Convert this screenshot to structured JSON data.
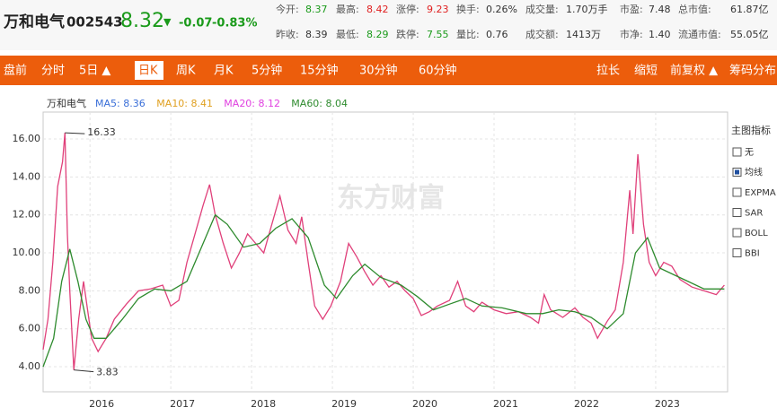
{
  "header": {
    "name": "万和电气",
    "code": "002543",
    "price": "8.32",
    "arrow": "▼",
    "change": "-0.07",
    "change_pct": "-0.83%",
    "down_color": "#1a9a1a",
    "up_color": "#e02020",
    "stats": [
      [
        {
          "label": "今开:",
          "value": "8.37",
          "color": "#1a9a1a"
        },
        {
          "label": "最高:",
          "value": "8.42",
          "color": "#e02020"
        },
        {
          "label": "涨停:",
          "value": "9.23",
          "color": "#e02020"
        },
        {
          "label": "换手:",
          "value": "0.26%",
          "color": "#333333"
        },
        {
          "label": "成交量:",
          "value": "1.70万手",
          "color": "#333333"
        },
        {
          "label": "市盈:",
          "value": "7.48",
          "color": "#333333"
        },
        {
          "label": "总市值:",
          "value": "61.87亿",
          "color": "#333333"
        }
      ],
      [
        {
          "label": "昨收:",
          "value": "8.39",
          "color": "#333333"
        },
        {
          "label": "最低:",
          "value": "8.29",
          "color": "#1a9a1a"
        },
        {
          "label": "跌停:",
          "value": "7.55",
          "color": "#1a9a1a"
        },
        {
          "label": "量比:",
          "value": "0.76",
          "color": "#333333"
        },
        {
          "label": "成交额:",
          "value": "1413万",
          "color": "#333333"
        },
        {
          "label": "市净:",
          "value": "1.40",
          "color": "#333333"
        },
        {
          "label": "流通市值:",
          "value": "55.05亿",
          "color": "#333333"
        }
      ]
    ]
  },
  "tabs": {
    "left": [
      "盘前",
      "分时",
      "5日 ▲",
      "日K",
      "周K",
      "月K",
      "5分钟",
      "15分钟",
      "30分钟",
      "60分钟"
    ],
    "selected": 3,
    "right": [
      "拉长",
      "缩短",
      "前复权 ▲",
      "筹码分布"
    ]
  },
  "panel": {
    "title": "主图指标",
    "options": [
      "无",
      "均线",
      "EXPMA",
      "SAR",
      "BOLL",
      "BBI"
    ],
    "checked": 1
  },
  "watermark": "东方财富",
  "chart_data": {
    "type": "line",
    "indicators": [
      {
        "label": "MA5: 8.36",
        "color": "#3a6fd8"
      },
      {
        "label": "MA10: 8.41",
        "color": "#e0a020"
      },
      {
        "label": "MA20: 8.12",
        "color": "#e040e0"
      }
    ],
    "xlim": [
      2015.42,
      2023.89
    ],
    "ylim": [
      2.68,
      17.42
    ],
    "xticks": [
      {
        "value": 2016,
        "label": "2016"
      },
      {
        "value": 2017,
        "label": "2017"
      },
      {
        "value": 2018,
        "label": "2018"
      },
      {
        "value": 2019,
        "label": "2019"
      },
      {
        "value": 2020,
        "label": "2020"
      },
      {
        "value": 2021,
        "label": "2021"
      },
      {
        "value": 2022,
        "label": "2022"
      },
      {
        "value": 2023,
        "label": "2023"
      }
    ],
    "yticks": [
      {
        "value": 4,
        "label": "4.00"
      },
      {
        "value": 6,
        "label": "6.00"
      },
      {
        "value": 8,
        "label": "8.00"
      },
      {
        "value": 10,
        "label": "10.00"
      },
      {
        "value": 12,
        "label": "12.00"
      },
      {
        "value": 14,
        "label": "14.00"
      },
      {
        "value": 16,
        "label": "16.00"
      }
    ],
    "grid": true,
    "series": [
      {
        "name": "万和电气",
        "color": "#e0407a",
        "x": [
          2015.42,
          2015.48,
          2015.54,
          2015.6,
          2015.66,
          2015.69,
          2015.72,
          2015.75,
          2015.78,
          2015.8,
          2015.86,
          2015.92,
          2015.97,
          2016.02,
          2016.1,
          2016.2,
          2016.3,
          2016.45,
          2016.6,
          2016.75,
          2016.9,
          2017.0,
          2017.1,
          2017.2,
          2017.3,
          2017.4,
          2017.48,
          2017.55,
          2017.65,
          2017.75,
          2017.85,
          2017.95,
          2018.05,
          2018.15,
          2018.25,
          2018.35,
          2018.45,
          2018.55,
          2018.62,
          2018.7,
          2018.78,
          2018.88,
          2018.98,
          2019.1,
          2019.2,
          2019.3,
          2019.4,
          2019.5,
          2019.6,
          2019.7,
          2019.8,
          2019.9,
          2020.0,
          2020.1,
          2020.2,
          2020.3,
          2020.45,
          2020.55,
          2020.65,
          2020.75,
          2020.85,
          2021.0,
          2021.15,
          2021.3,
          2021.45,
          2021.55,
          2021.62,
          2021.7,
          2021.85,
          2022.0,
          2022.1,
          2022.2,
          2022.28,
          2022.4,
          2022.5,
          2022.6,
          2022.68,
          2022.72,
          2022.78,
          2022.85,
          2022.92,
          2023.0,
          2023.1,
          2023.2,
          2023.3,
          2023.45,
          2023.6,
          2023.75,
          2023.85
        ],
        "values": [
          4.9,
          6.5,
          9.5,
          13.5,
          14.8,
          16.33,
          11,
          8,
          5.5,
          3.83,
          6.5,
          8.5,
          7,
          5.5,
          4.8,
          5.5,
          6.5,
          7.3,
          8,
          8.1,
          8.3,
          7.2,
          7.5,
          9.5,
          11,
          12.5,
          13.6,
          12,
          10.5,
          9.2,
          10,
          11,
          10.5,
          10,
          11.5,
          13,
          11.2,
          10.5,
          11.9,
          9.5,
          7.2,
          6.5,
          7.2,
          8.5,
          10.5,
          9.8,
          9,
          8.3,
          8.8,
          8.2,
          8.5,
          8.0,
          7.6,
          6.7,
          6.9,
          7.2,
          7.5,
          8.5,
          7.2,
          6.9,
          7.4,
          7.0,
          6.8,
          6.9,
          6.6,
          6.3,
          7.8,
          7.0,
          6.6,
          7.1,
          6.6,
          6.3,
          5.5,
          6.4,
          7.0,
          9.5,
          13.3,
          11,
          15.2,
          11.5,
          9.5,
          8.8,
          9.5,
          9.3,
          8.6,
          8.2,
          8.0,
          7.8,
          8.3
        ]
      },
      {
        "name": "MA60: 8.04",
        "color": "#2e8b2e",
        "x": [
          2015.42,
          2015.55,
          2015.65,
          2015.75,
          2015.85,
          2015.95,
          2016.05,
          2016.2,
          2016.4,
          2016.6,
          2016.8,
          2017.0,
          2017.2,
          2017.4,
          2017.55,
          2017.7,
          2017.9,
          2018.1,
          2018.3,
          2018.5,
          2018.7,
          2018.9,
          2019.05,
          2019.25,
          2019.4,
          2019.6,
          2019.85,
          2020.05,
          2020.25,
          2020.45,
          2020.65,
          2020.85,
          2021.1,
          2021.4,
          2021.6,
          2021.8,
          2022.0,
          2022.2,
          2022.4,
          2022.6,
          2022.75,
          2022.9,
          2023.05,
          2023.3,
          2023.6,
          2023.85
        ],
        "values": [
          4.0,
          5.5,
          8.5,
          10.2,
          8.5,
          6.5,
          5.5,
          5.5,
          6.5,
          7.6,
          8.1,
          8.0,
          8.5,
          10.5,
          12.0,
          11.5,
          10.3,
          10.5,
          11.3,
          11.8,
          10.8,
          8.3,
          7.6,
          8.8,
          9.4,
          8.7,
          8.3,
          7.7,
          7.0,
          7.3,
          7.6,
          7.2,
          7.1,
          6.8,
          6.8,
          7.0,
          6.9,
          6.6,
          6.0,
          6.8,
          10,
          10.8,
          9.2,
          8.7,
          8.1,
          8.1
        ]
      }
    ],
    "annotations": [
      {
        "x": 2015.69,
        "y": 16.33
      },
      {
        "x": 2015.8,
        "y": 3.83
      }
    ]
  }
}
